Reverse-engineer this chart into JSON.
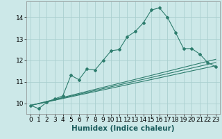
{
  "xlabel": "Humidex (Indice chaleur)",
  "background_color": "#cce8e8",
  "grid_color": "#aacfcf",
  "line_color": "#2e7d6e",
  "xlim": [
    -0.5,
    23.5
  ],
  "ylim": [
    9.5,
    14.75
  ],
  "yticks": [
    10,
    11,
    12,
    13,
    14
  ],
  "xticks": [
    0,
    1,
    2,
    3,
    4,
    5,
    6,
    7,
    8,
    9,
    10,
    11,
    12,
    13,
    14,
    15,
    16,
    17,
    18,
    19,
    20,
    21,
    22,
    23
  ],
  "main_line_x": [
    0,
    1,
    2,
    3,
    4,
    5,
    6,
    7,
    8,
    9,
    10,
    11,
    12,
    13,
    14,
    15,
    16,
    17,
    18,
    19,
    20,
    21,
    22,
    23
  ],
  "main_line_y": [
    9.9,
    9.75,
    10.05,
    10.2,
    10.35,
    11.3,
    11.1,
    11.6,
    11.55,
    12.0,
    12.45,
    12.5,
    13.1,
    13.35,
    13.75,
    14.35,
    14.45,
    14.0,
    13.3,
    12.55,
    12.55,
    12.3,
    11.9,
    11.7
  ],
  "line2_x": [
    0,
    23
  ],
  "line2_y": [
    9.9,
    11.75
  ],
  "line3_x": [
    0,
    23
  ],
  "line3_y": [
    9.9,
    11.9
  ],
  "line4_x": [
    0,
    23
  ],
  "line4_y": [
    9.9,
    12.05
  ],
  "tick_fontsize": 6.5,
  "xlabel_fontsize": 7.5
}
